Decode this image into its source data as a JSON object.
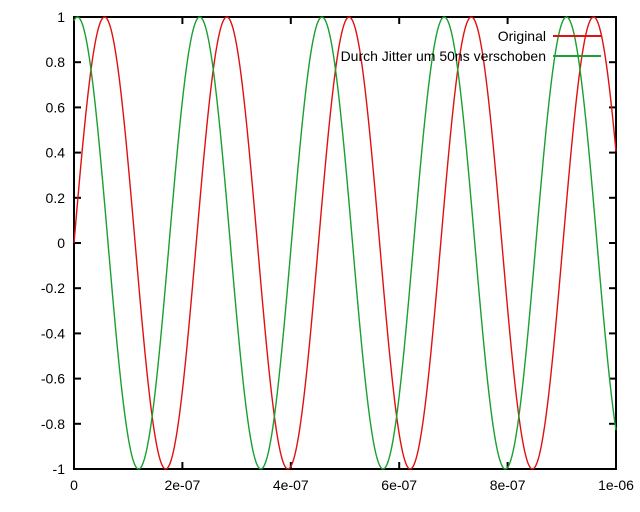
{
  "chart_data": {
    "type": "line",
    "title": "",
    "xlabel": "",
    "ylabel": "",
    "xlim": [
      0,
      1e-06
    ],
    "ylim": [
      -1,
      1
    ],
    "x_ticks": [
      0,
      2e-07,
      4e-07,
      6e-07,
      8e-07,
      1e-06
    ],
    "x_tick_labels": [
      "0",
      "2e-07",
      "4e-07",
      "6e-07",
      "8e-07",
      "1e-06"
    ],
    "y_ticks": [
      1,
      0.8,
      0.6,
      0.4,
      0.2,
      0,
      -0.2,
      -0.4,
      -0.6,
      -0.8,
      -1
    ],
    "y_tick_labels": [
      "1",
      "0.8",
      "0.6",
      "0.4",
      "0.2",
      "0",
      "-0.2",
      "-0.4",
      "-0.6",
      "-0.8",
      "-1"
    ],
    "grid": false,
    "legend_position": "top-right-inside",
    "axis_color": "#000000",
    "background_color": "#ffffff",
    "series": [
      {
        "name": "Original",
        "color": "#e01010",
        "waveform": "sine",
        "amplitude": 1,
        "frequency_hz": 4433618.75,
        "time_shift_s": 0
      },
      {
        "name": "Durch Jitter um 50ns verschoben",
        "color": "#18a030",
        "waveform": "sine",
        "amplitude": 1,
        "frequency_hz": 4433618.75,
        "time_shift_s": 5e-08
      }
    ]
  }
}
